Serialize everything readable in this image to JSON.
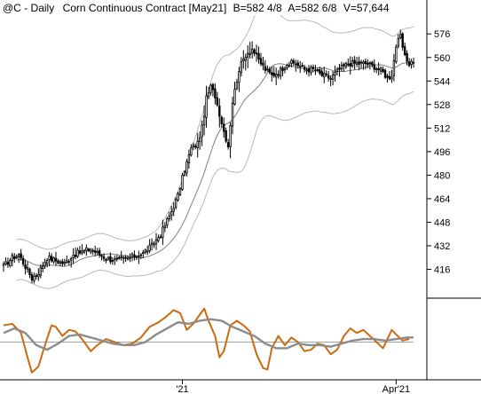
{
  "header": {
    "symbol": "@C",
    "interval": "Daily",
    "instrument": "Corn Continuous Contract [May21]",
    "bid": "B=582 4/8",
    "ask": "A=582 6/8",
    "volume": "V=57,644"
  },
  "colors": {
    "candle": "#000000",
    "bands": "#b8b8b8",
    "moving_average": "#808080",
    "oscillator_fast": "#cc6a10",
    "oscillator_slow": "#8c8c8c",
    "zero_line": "#a0a0a0",
    "axis": "#000000"
  },
  "chart_data": [
    {
      "type": "candlestick",
      "title": "",
      "y_ticks": [
        416,
        432,
        448,
        464,
        480,
        496,
        512,
        528,
        544,
        560,
        576
      ],
      "ylim": [
        400,
        587
      ],
      "x_ticks": [
        {
          "label": "'21",
          "index": 82
        },
        {
          "label": "Apr'21",
          "index": 180
        }
      ],
      "bar_count": 189,
      "anchors": [
        [
          0,
          418
        ],
        [
          4,
          424
        ],
        [
          7,
          426
        ],
        [
          10,
          418
        ],
        [
          13,
          410
        ],
        [
          16,
          414
        ],
        [
          20,
          424
        ],
        [
          24,
          422
        ],
        [
          28,
          420
        ],
        [
          32,
          426
        ],
        [
          36,
          428
        ],
        [
          40,
          430
        ],
        [
          44,
          426
        ],
        [
          48,
          423
        ],
        [
          52,
          422
        ],
        [
          56,
          423
        ],
        [
          60,
          425
        ],
        [
          64,
          427
        ],
        [
          68,
          432
        ],
        [
          72,
          440
        ],
        [
          76,
          452
        ],
        [
          80,
          466
        ],
        [
          83,
          484
        ],
        [
          86,
          498
        ],
        [
          89,
          502
        ],
        [
          91,
          512
        ],
        [
          93,
          532
        ],
        [
          95,
          540
        ],
        [
          97,
          534
        ],
        [
          99,
          522
        ],
        [
          101,
          510
        ],
        [
          103,
          500
        ],
        [
          105,
          530
        ],
        [
          108,
          552
        ],
        [
          111,
          562
        ],
        [
          114,
          566
        ],
        [
          117,
          558
        ],
        [
          120,
          552
        ],
        [
          123,
          548
        ],
        [
          126,
          550
        ],
        [
          130,
          556
        ],
        [
          134,
          556
        ],
        [
          138,
          552
        ],
        [
          142,
          552
        ],
        [
          146,
          548
        ],
        [
          150,
          546
        ],
        [
          154,
          552
        ],
        [
          158,
          556
        ],
        [
          162,
          556
        ],
        [
          166,
          556
        ],
        [
          170,
          554
        ],
        [
          174,
          550
        ],
        [
          176,
          546
        ],
        [
          178,
          548
        ],
        [
          180,
          568
        ],
        [
          182,
          574
        ],
        [
          184,
          560
        ],
        [
          186,
          556
        ],
        [
          188,
          558
        ]
      ],
      "band_width": [
        [
          0,
          14
        ],
        [
          60,
          12
        ],
        [
          70,
          14
        ],
        [
          80,
          22
        ],
        [
          95,
          34
        ],
        [
          110,
          44
        ],
        [
          130,
          34
        ],
        [
          150,
          28
        ],
        [
          170,
          24
        ],
        [
          189,
          22
        ]
      ],
      "ma_lag": 9,
      "band_lag": 6
    },
    {
      "type": "line",
      "title": "",
      "ylim": [
        -1.15,
        1.15
      ],
      "series": [
        {
          "role": "fast",
          "points": [
            [
              0,
              0.55
            ],
            [
              4,
              0.6
            ],
            [
              8,
              0.3
            ],
            [
              11,
              -0.5
            ],
            [
              13,
              -1.0
            ],
            [
              16,
              -0.8
            ],
            [
              19,
              -0.1
            ],
            [
              22,
              0.55
            ],
            [
              24,
              0.5
            ],
            [
              27,
              0.2
            ],
            [
              30,
              0.4
            ],
            [
              33,
              0.35
            ],
            [
              36,
              0.1
            ],
            [
              40,
              -0.3
            ],
            [
              43,
              -0.1
            ],
            [
              47,
              0.1
            ],
            [
              51,
              0.0
            ],
            [
              55,
              -0.1
            ],
            [
              59,
              -0.05
            ],
            [
              63,
              0.15
            ],
            [
              67,
              0.5
            ],
            [
              71,
              0.65
            ],
            [
              74,
              0.8
            ],
            [
              78,
              1.05
            ],
            [
              81,
              0.95
            ],
            [
              84,
              0.4
            ],
            [
              87,
              0.6
            ],
            [
              90,
              0.9
            ],
            [
              92,
              1.1
            ],
            [
              94,
              0.7
            ],
            [
              97,
              0.2
            ],
            [
              99,
              -0.5
            ],
            [
              101,
              -0.3
            ],
            [
              104,
              0.55
            ],
            [
              107,
              0.7
            ],
            [
              110,
              0.55
            ],
            [
              113,
              0.35
            ],
            [
              116,
              -0.4
            ],
            [
              119,
              -0.85
            ],
            [
              121,
              -0.9
            ],
            [
              123,
              -0.2
            ],
            [
              126,
              0.2
            ],
            [
              129,
              -0.1
            ],
            [
              132,
              0.15
            ],
            [
              135,
              0.0
            ],
            [
              138,
              -0.3
            ],
            [
              141,
              -0.25
            ],
            [
              144,
              -0.05
            ],
            [
              147,
              -0.1
            ],
            [
              150,
              -0.4
            ],
            [
              153,
              -0.25
            ],
            [
              156,
              0.2
            ],
            [
              159,
              0.45
            ],
            [
              162,
              0.3
            ],
            [
              165,
              0.4
            ],
            [
              168,
              0.2
            ],
            [
              171,
              0.0
            ],
            [
              174,
              -0.2
            ],
            [
              176,
              0.1
            ],
            [
              178,
              0.4
            ],
            [
              180,
              0.25
            ],
            [
              183,
              0.05
            ],
            [
              186,
              0.1
            ]
          ]
        },
        {
          "role": "slow",
          "points": [
            [
              0,
              0.3
            ],
            [
              5,
              0.45
            ],
            [
              10,
              0.3
            ],
            [
              15,
              -0.1
            ],
            [
              20,
              -0.25
            ],
            [
              25,
              -0.05
            ],
            [
              30,
              0.2
            ],
            [
              35,
              0.25
            ],
            [
              40,
              0.15
            ],
            [
              45,
              0.05
            ],
            [
              50,
              -0.05
            ],
            [
              55,
              -0.1
            ],
            [
              60,
              -0.1
            ],
            [
              65,
              0.0
            ],
            [
              70,
              0.25
            ],
            [
              75,
              0.45
            ],
            [
              80,
              0.65
            ],
            [
              85,
              0.6
            ],
            [
              90,
              0.7
            ],
            [
              95,
              0.75
            ],
            [
              100,
              0.7
            ],
            [
              105,
              0.5
            ],
            [
              110,
              0.35
            ],
            [
              115,
              0.2
            ],
            [
              120,
              -0.05
            ],
            [
              125,
              -0.2
            ],
            [
              130,
              -0.2
            ],
            [
              135,
              -0.05
            ],
            [
              140,
              -0.1
            ],
            [
              145,
              -0.1
            ],
            [
              150,
              -0.15
            ],
            [
              155,
              -0.05
            ],
            [
              160,
              0.05
            ],
            [
              165,
              0.1
            ],
            [
              170,
              0.1
            ],
            [
              175,
              0.05
            ],
            [
              180,
              0.1
            ],
            [
              185,
              0.15
            ],
            [
              188,
              0.15
            ]
          ]
        }
      ]
    }
  ]
}
